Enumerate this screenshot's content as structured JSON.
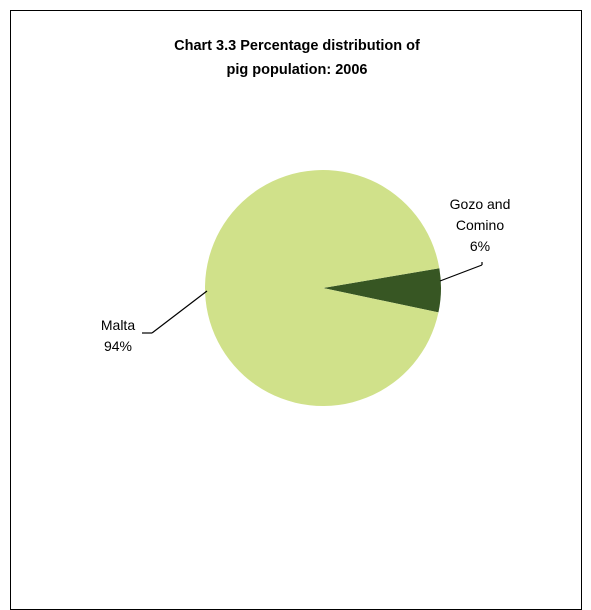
{
  "chart_data": {
    "type": "pie",
    "title_lines": [
      "Chart 3.3  Percentage distribution of",
      "pig population:  2006"
    ],
    "slices": [
      {
        "label_lines": [
          "Gozo and",
          "Comino"
        ],
        "value": 6,
        "value_label": "6%",
        "color": "#375623"
      },
      {
        "label_lines": [
          "Malta"
        ],
        "value": 94,
        "value_label": "94%",
        "color": "#d0e18a"
      }
    ],
    "legend": "none"
  }
}
